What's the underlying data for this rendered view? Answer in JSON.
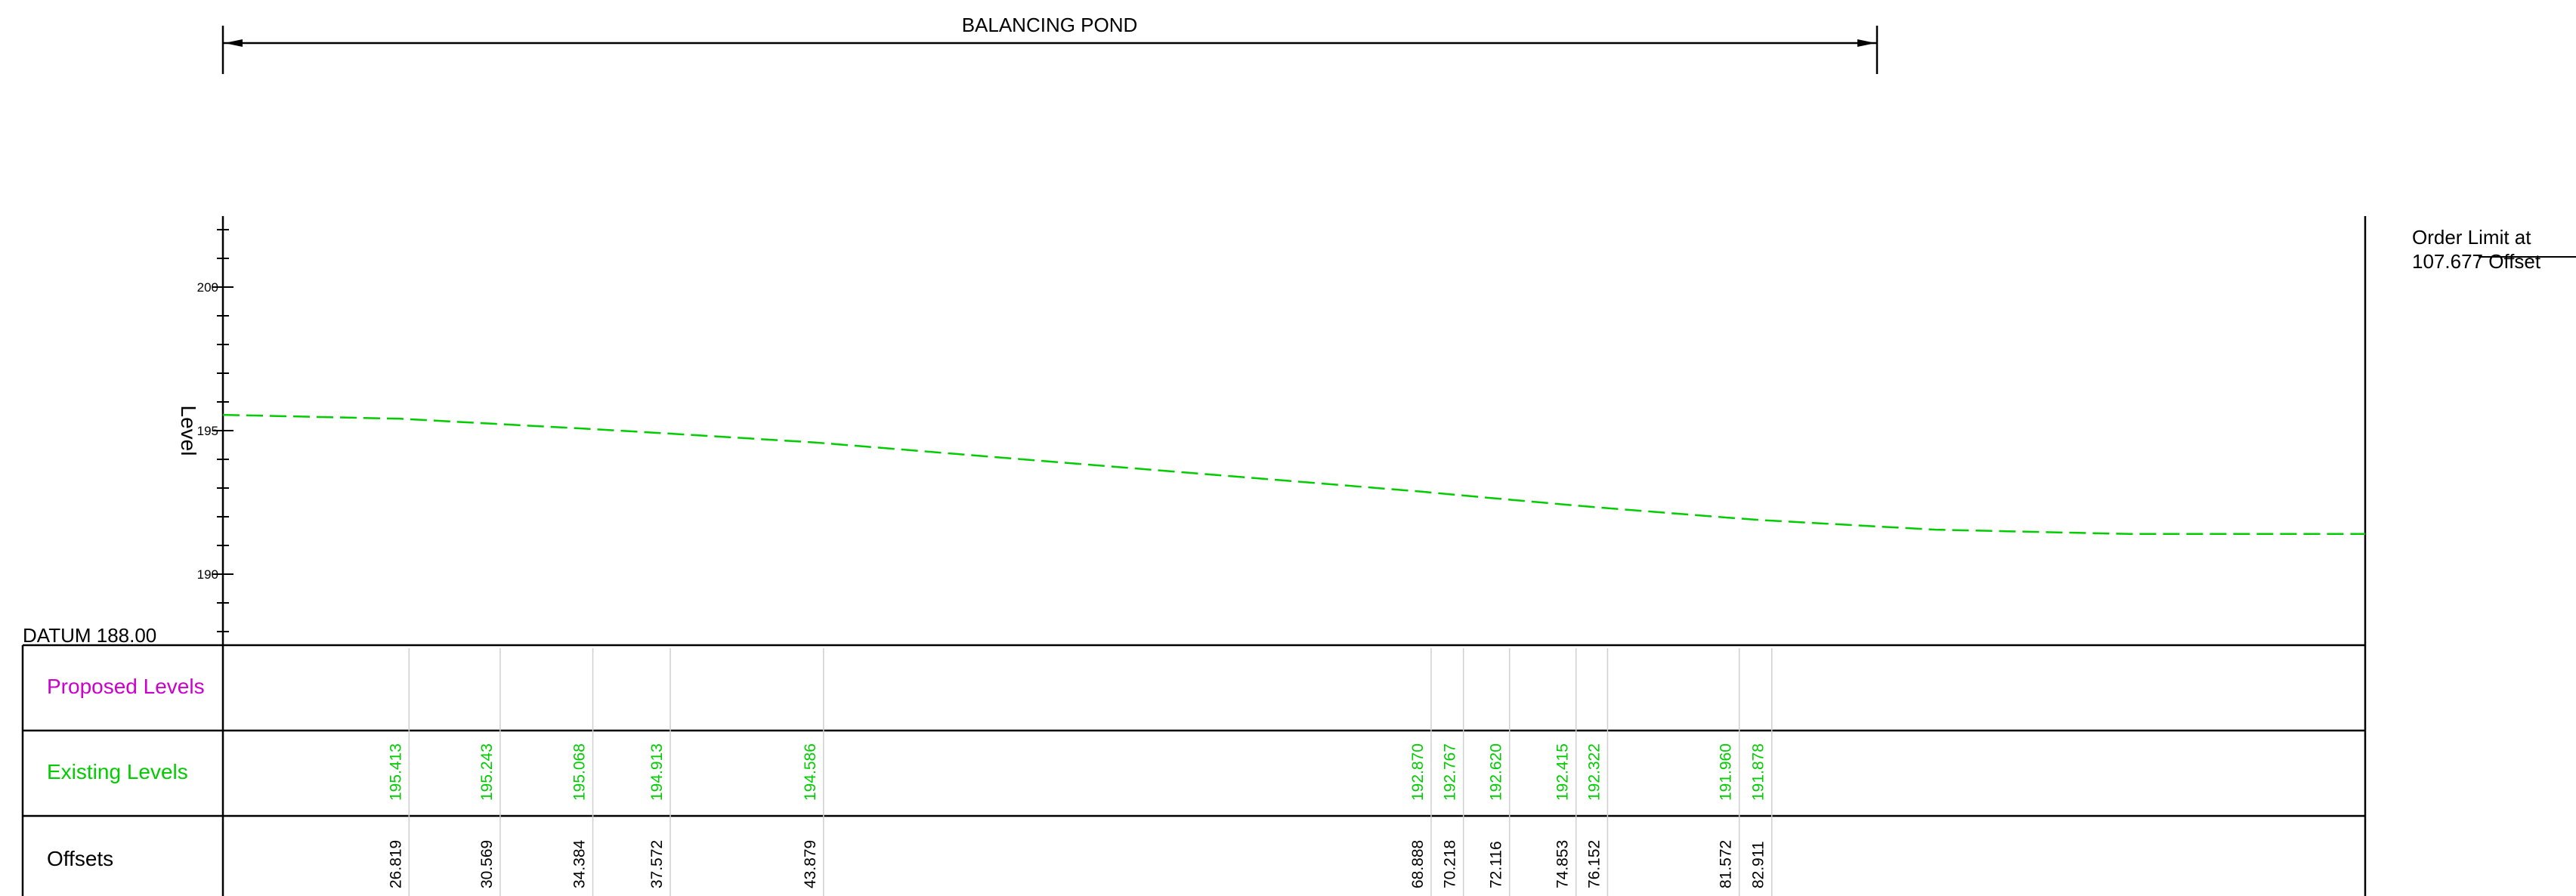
{
  "drawing": {
    "pond_label": "BALANCING POND",
    "axis_title": "Level",
    "datum_label": "DATUM 188.00",
    "order_limit": [
      "Order Limit at",
      "107.677 Offset"
    ]
  },
  "band": {
    "proposed_label": "Proposed Levels",
    "existing_label": "Existing Levels",
    "offsets_label": "Offsets"
  },
  "colors": {
    "proposed": "#cc00cc",
    "existing": "#00cc00",
    "ink": "#000000",
    "grid": "#cfcfcf"
  },
  "chart_data": {
    "type": "line",
    "ylabel": "Level",
    "ylim": [
      188,
      202
    ],
    "yticks": [
      190,
      195,
      200
    ],
    "x_range": [
      19.5,
      107.677
    ],
    "series": [
      {
        "style": "dashed",
        "color": "#00cc00",
        "points": [
          [
            19.5,
            195.55
          ],
          [
            26.819,
            195.413
          ],
          [
            30.569,
            195.243
          ],
          [
            34.384,
            195.068
          ],
          [
            37.572,
            194.913
          ],
          [
            43.879,
            194.586
          ],
          [
            68.888,
            192.87
          ],
          [
            70.218,
            192.767
          ],
          [
            72.116,
            192.62
          ],
          [
            74.853,
            192.415
          ],
          [
            76.152,
            192.322
          ],
          [
            81.572,
            191.96
          ],
          [
            82.911,
            191.878
          ],
          [
            90.0,
            191.55
          ],
          [
            98.0,
            191.4
          ],
          [
            107.677,
            191.4
          ]
        ]
      }
    ],
    "stations": [
      {
        "offset": "26.819",
        "existing": "195.413"
      },
      {
        "offset": "30.569",
        "existing": "195.243"
      },
      {
        "offset": "34.384",
        "existing": "195.068"
      },
      {
        "offset": "37.572",
        "existing": "194.913"
      },
      {
        "offset": "43.879",
        "existing": "194.586"
      },
      {
        "offset": "68.888",
        "existing": "192.870"
      },
      {
        "offset": "70.218",
        "existing": "192.767"
      },
      {
        "offset": "72.116",
        "existing": "192.620"
      },
      {
        "offset": "74.853",
        "existing": "192.415"
      },
      {
        "offset": "76.152",
        "existing": "192.322"
      },
      {
        "offset": "81.572",
        "existing": "191.960"
      },
      {
        "offset": "82.911",
        "existing": "191.878"
      }
    ],
    "pond_extent": [
      19.5,
      82.911
    ]
  }
}
